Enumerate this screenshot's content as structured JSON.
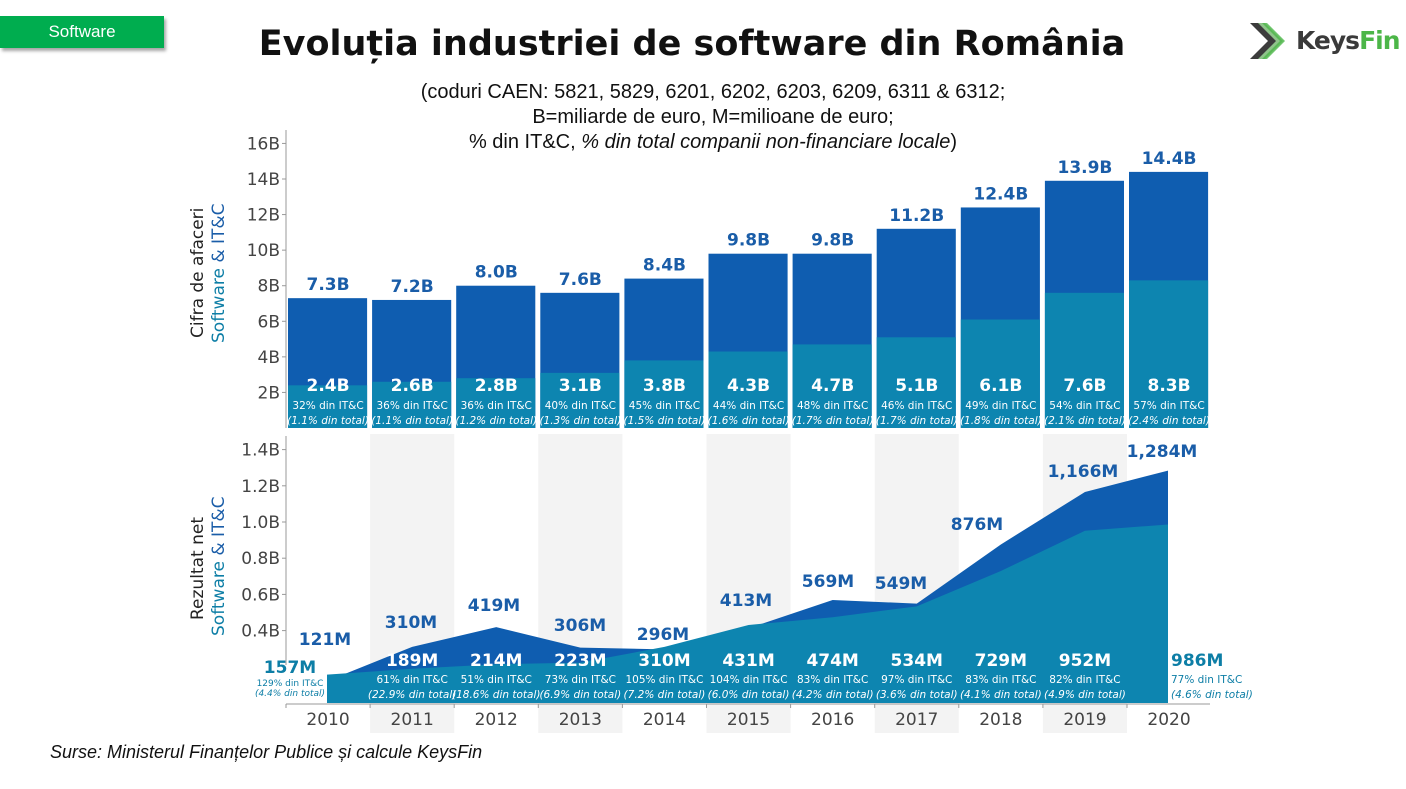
{
  "header": {
    "section_tag": "Software",
    "title": "Evoluția industriei de software din România",
    "subtitle_line1": "(coduri CAEN: 5821, 5829, 6201, 6202, 6203, 6209, 6311 & 6312;",
    "subtitle_line2": "B=miliarde de euro, M=milioane de euro;",
    "subtitle_line3_normal": "% din IT&C, ",
    "subtitle_line3_italic": "% din total companii non-financiare locale",
    "subtitle_line3_end": ")"
  },
  "logo": {
    "part1": "Keys",
    "part2": "Fin",
    "icon": "chevron-arrows-icon"
  },
  "source": "Surse: Ministerul Finanțelor Publice și calcule KeysFin",
  "colors": {
    "itc": "#0f5db0",
    "software": "#0d85b0",
    "label_dark": "#1a5da8",
    "label_teal": "#0d7ea6",
    "band": "#f3f3f3",
    "tag": "#00ad4f"
  },
  "chart_data": [
    {
      "type": "bar",
      "title": "Cifra de afaceri",
      "ylabel_line1": "Cifra de afaceri",
      "ylabel_line2_a": "Software",
      "ylabel_line2_b": " & IT&C",
      "categories": [
        "2010",
        "2011",
        "2012",
        "2013",
        "2014",
        "2015",
        "2016",
        "2017",
        "2018",
        "2019",
        "2020"
      ],
      "ylim": [
        0,
        16
      ],
      "yticks": [
        2,
        4,
        6,
        8,
        10,
        12,
        14,
        16
      ],
      "ytick_labels": [
        "2B",
        "4B",
        "6B",
        "8B",
        "10B",
        "12B",
        "14B",
        "16B"
      ],
      "series": [
        {
          "name": "IT&C",
          "values": [
            7.3,
            7.2,
            8.0,
            7.6,
            8.4,
            9.8,
            9.8,
            11.2,
            12.4,
            13.9,
            14.4
          ],
          "labels": [
            "7.3B",
            "7.2B",
            "8.0B",
            "7.6B",
            "8.4B",
            "9.8B",
            "9.8B",
            "11.2B",
            "12.4B",
            "13.9B",
            "14.4B"
          ]
        },
        {
          "name": "Software",
          "values": [
            2.4,
            2.6,
            2.8,
            3.1,
            3.8,
            4.3,
            4.7,
            5.1,
            6.1,
            7.6,
            8.3
          ],
          "labels": [
            "2.4B",
            "2.6B",
            "2.8B",
            "3.1B",
            "3.8B",
            "4.3B",
            "4.7B",
            "5.1B",
            "6.1B",
            "7.6B",
            "8.3B"
          ],
          "pct_itc": [
            "32% din IT&C",
            "36% din IT&C",
            "36% din IT&C",
            "40% din IT&C",
            "45% din IT&C",
            "44% din IT&C",
            "48% din IT&C",
            "46% din IT&C",
            "49% din IT&C",
            "54% din IT&C",
            "57% din IT&C"
          ],
          "pct_total": [
            "(1.1% din total)",
            "(1.1% din total)",
            "(1.2% din total)",
            "(1.3% din total)",
            "(1.5% din total)",
            "(1.6% din total)",
            "(1.7% din total)",
            "(1.7% din total)",
            "(1.8% din total)",
            "(2.1% din total)",
            "(2.4% din total)"
          ]
        }
      ],
      "grid": false
    },
    {
      "type": "area",
      "title": "Rezultat net",
      "ylabel_line1": "Rezultat net",
      "ylabel_line2_a": "Software",
      "ylabel_line2_b": " & IT&C",
      "categories": [
        "2010",
        "2011",
        "2012",
        "2013",
        "2014",
        "2015",
        "2016",
        "2017",
        "2018",
        "2019",
        "2020"
      ],
      "ylim": [
        0,
        1.5
      ],
      "yticks": [
        0.4,
        0.6,
        0.8,
        1.0,
        1.2,
        1.4
      ],
      "ytick_labels": [
        "0.4B",
        "0.6B",
        "0.8B",
        "1.0B",
        "1.2B",
        "1.4B"
      ],
      "series": [
        {
          "name": "IT&C",
          "values": [
            121,
            310,
            419,
            306,
            296,
            413,
            569,
            549,
            876,
            1166,
            1284
          ],
          "labels": [
            "121M",
            "310M",
            "419M",
            "306M",
            "296M",
            "413M",
            "569M",
            "549M",
            "876M",
            "1,166M",
            "1,284M"
          ]
        },
        {
          "name": "Software",
          "values": [
            157,
            189,
            214,
            223,
            310,
            431,
            474,
            534,
            729,
            952,
            986
          ],
          "labels": [
            "157M",
            "189M",
            "214M",
            "223M",
            "310M",
            "431M",
            "474M",
            "534M",
            "729M",
            "952M",
            "986M"
          ],
          "pct_itc": [
            "129% din IT&C",
            "61% din IT&C",
            "51% din IT&C",
            "73% din IT&C",
            "105% din IT&C",
            "104% din IT&C",
            "83% din IT&C",
            "97% din IT&C",
            "83% din IT&C",
            "82% din IT&C",
            "77% din IT&C"
          ],
          "pct_total": [
            "(4.4% din total)",
            "(22.9% din total)",
            "(18.6% din total)",
            "(6.9% din total)",
            "(7.2% din total)",
            "(6.0% din total)",
            "(4.2% din total)",
            "(3.6% din total)",
            "(4.1% din total)",
            "(4.9% din total)",
            "(4.6% din total)"
          ]
        }
      ],
      "units": "M EUR",
      "grid": false
    }
  ]
}
